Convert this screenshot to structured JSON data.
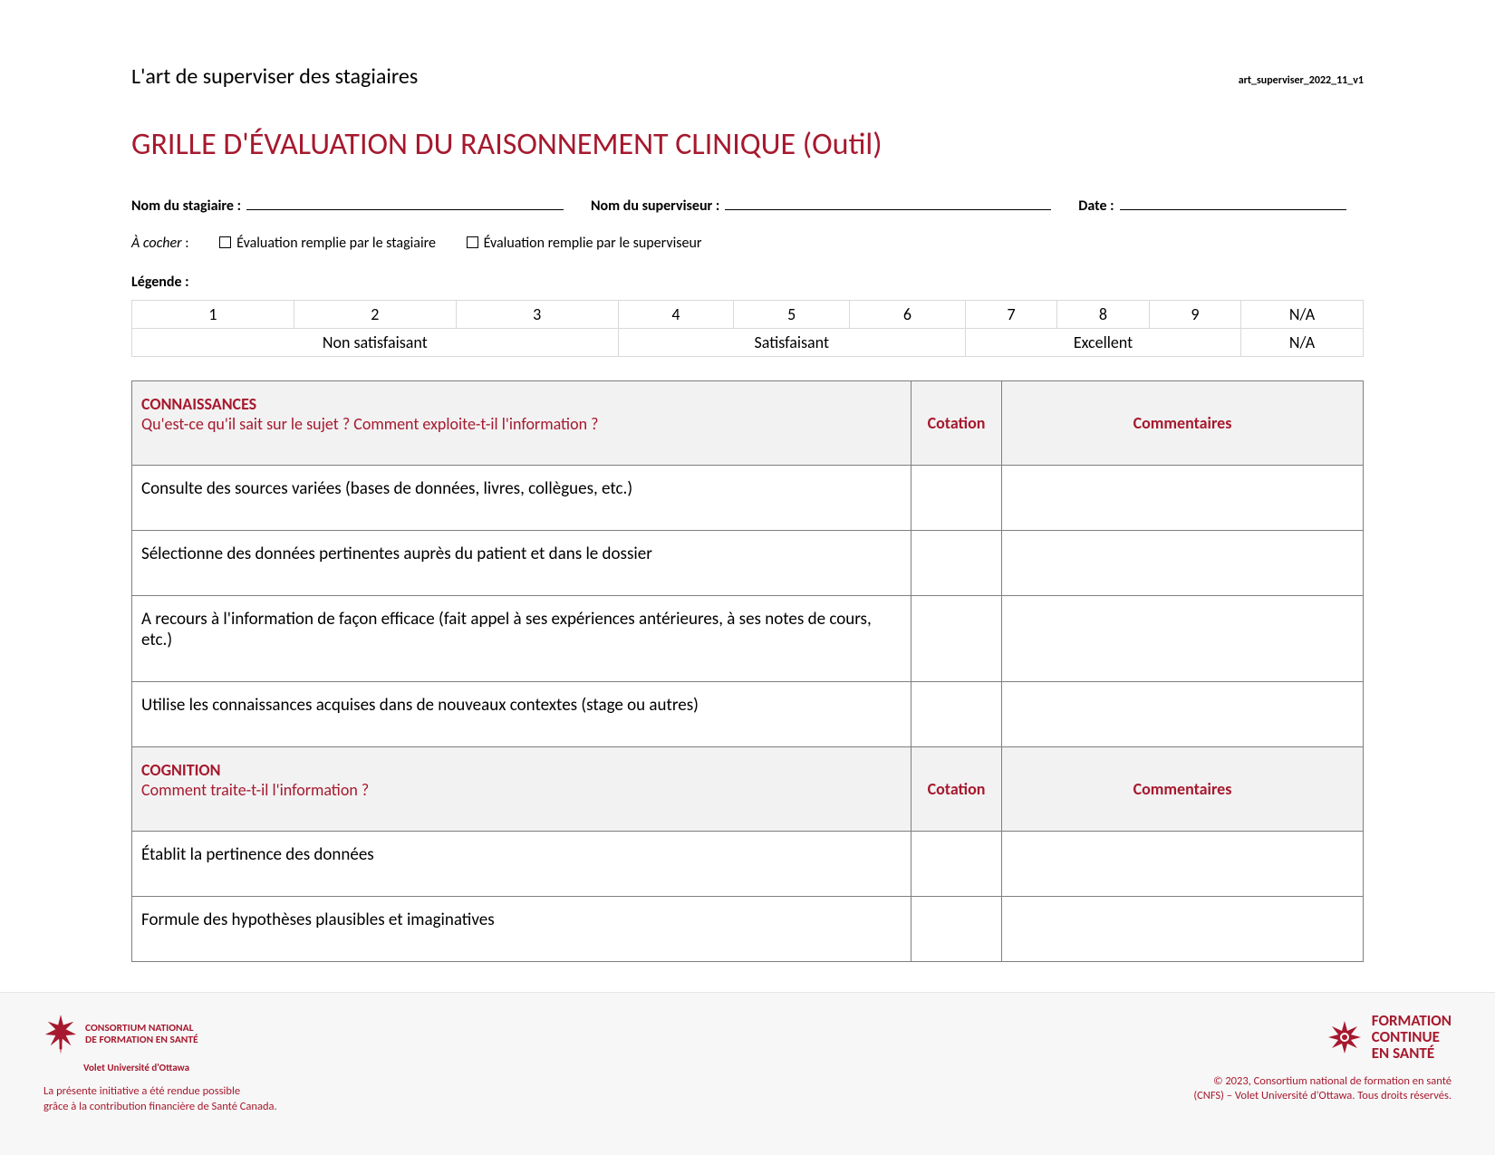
{
  "colors": {
    "brand": "#a6192e",
    "text": "#000000",
    "grid": "#d9d9d9",
    "eval_border": "#7f7f7f",
    "section_bg": "#f2f2f2",
    "footer_bg": "#f7f7f7"
  },
  "header": {
    "left": "L'art de superviser des stagiaires",
    "right": "art_superviser_2022_11_v1"
  },
  "title": "GRILLE D'ÉVALUATION DU RAISONNEMENT CLINIQUE (Outil)",
  "form": {
    "stagiaire_label": "Nom du stagiaire :",
    "superviseur_label": "Nom du superviseur :",
    "date_label": "Date :",
    "stagiaire_value": "",
    "superviseur_value": "",
    "date_value": ""
  },
  "check": {
    "lead": "À cocher",
    "colon": " :",
    "opt1": "Évaluation remplie par le stagiaire",
    "opt2": "Évaluation remplie par le superviseur"
  },
  "legend": {
    "label": "Légende :",
    "nums": [
      "1",
      "2",
      "3",
      "4",
      "5",
      "6",
      "7",
      "8",
      "9",
      "N/A"
    ],
    "groups": [
      {
        "label": "Non satisfaisant",
        "span": 3
      },
      {
        "label": "Satisfaisant",
        "span": 3
      },
      {
        "label": "Excellent",
        "span": 3
      },
      {
        "label": "N/A",
        "span": 1
      }
    ]
  },
  "eval": {
    "cotation": "Cotation",
    "commentaires": "Commentaires",
    "sections": [
      {
        "title": "CONNAISSANCES",
        "subtitle": "Qu'est-ce qu'il sait sur le sujet ? Comment exploite-t-il l'information ?",
        "rows": [
          "Consulte des sources variées (bases de données, livres, collègues, etc.)",
          "Sélectionne des données pertinentes auprès du patient et dans le dossier",
          "A recours à l'information de façon efficace (fait appel à ses expériences antérieures, à ses notes de cours, etc.)",
          "Utilise les connaissances acquises dans de nouveaux contextes (stage ou autres)"
        ]
      },
      {
        "title": "COGNITION",
        "subtitle": "Comment traite-t-il l'information ?",
        "rows": [
          "Établit la pertinence des données",
          "Formule des hypothèses plausibles et imaginatives"
        ]
      }
    ]
  },
  "footer": {
    "left": {
      "org1": "CONSORTIUM NATIONAL",
      "org2": "DE FORMATION EN SANTÉ",
      "volet": "Volet Université d'Ottawa",
      "line1": "La présente initiative a été rendue possible",
      "line2": "grâce à la contribution financière de Santé Canada."
    },
    "right": {
      "brand1": "FORMATION",
      "brand2": "CONTINUE",
      "brand3": "EN SANTÉ",
      "copy1": "© 2023, Consortium national de formation en santé",
      "copy2": "(CNFS) – Volet Université d'Ottawa. Tous droits réservés."
    }
  }
}
